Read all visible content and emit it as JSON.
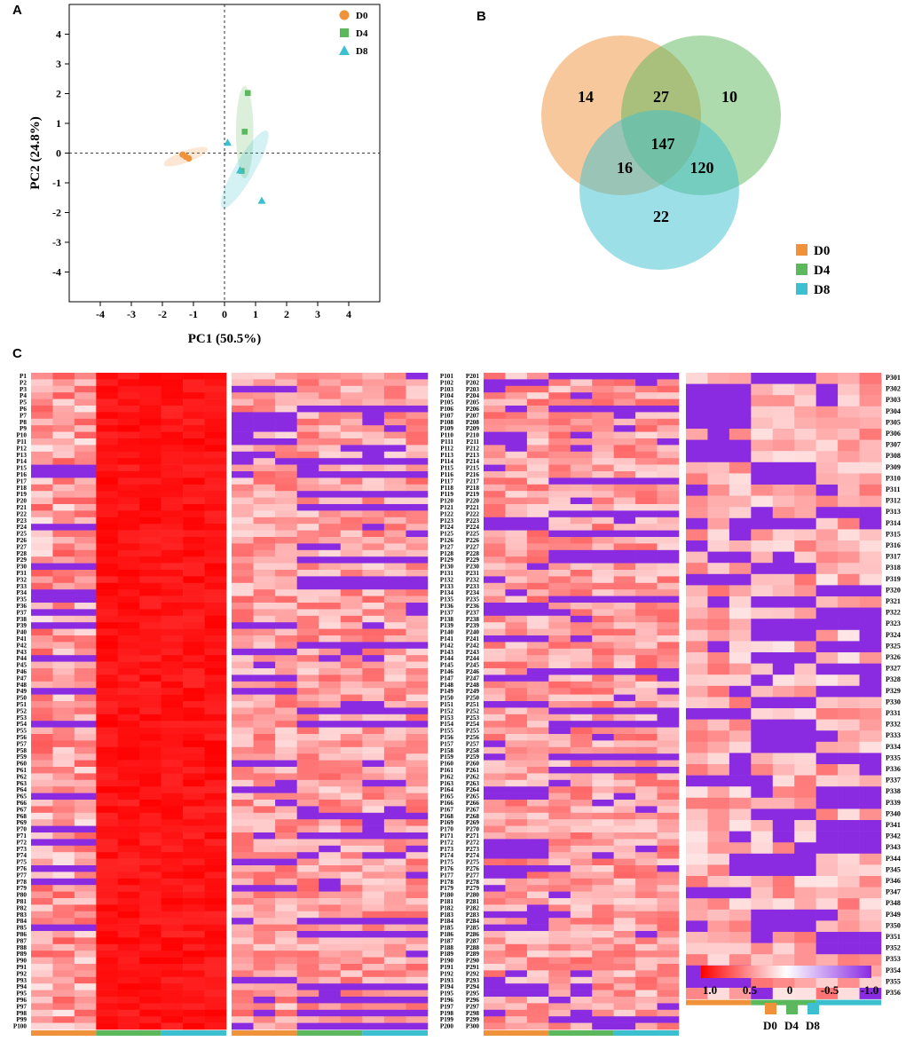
{
  "panels": {
    "a": "A",
    "b": "B",
    "c": "C"
  },
  "chart_data": [
    {
      "type": "scatter",
      "panel": "A",
      "xlabel": "PC1 (50.5%)",
      "ylabel": "PC2 (24.8%)",
      "xlim": [
        -5,
        5
      ],
      "ylim": [
        -5,
        5
      ],
      "xticks": [
        -4,
        -3,
        -2,
        -1,
        0,
        1,
        2,
        3,
        4
      ],
      "yticks": [
        -4,
        -3,
        -2,
        -1,
        0,
        1,
        2,
        3,
        4
      ],
      "legend_position": "top-right",
      "series": [
        {
          "name": "D0",
          "color": "#f0923a",
          "marker": "circle",
          "points": [
            [
              -1.35,
              -0.05
            ],
            [
              -1.25,
              -0.12
            ],
            [
              -1.15,
              -0.18
            ]
          ],
          "ellipse": {
            "cx": -1.25,
            "cy": -0.12,
            "rx": 0.75,
            "ry": 0.2,
            "angle": -20
          }
        },
        {
          "name": "D4",
          "color": "#5cb85c",
          "marker": "square",
          "points": [
            [
              0.75,
              2.02
            ],
            [
              0.65,
              0.72
            ],
            [
              0.55,
              -0.6
            ]
          ],
          "ellipse": {
            "cx": 0.65,
            "cy": 0.7,
            "rx": 0.28,
            "ry": 1.55,
            "angle": 0
          }
        },
        {
          "name": "D8",
          "color": "#3cbfcf",
          "marker": "triangle",
          "points": [
            [
              0.1,
              0.35
            ],
            [
              0.5,
              -0.58
            ],
            [
              1.2,
              -1.6
            ]
          ],
          "ellipse": {
            "cx": 0.65,
            "cy": -0.55,
            "rx": 0.32,
            "ry": 1.5,
            "angle": 30
          }
        }
      ]
    },
    {
      "type": "venn",
      "panel": "B",
      "sets": [
        {
          "name": "D0",
          "color": "#f0923a"
        },
        {
          "name": "D4",
          "color": "#5cb85c"
        },
        {
          "name": "D8",
          "color": "#3cbfcf"
        }
      ],
      "regions": {
        "D0_only": 14,
        "D4_only": 10,
        "D8_only": 22,
        "D0_D4": 27,
        "D0_D8": 16,
        "D4_D8": 120,
        "D0_D4_D8": 147
      },
      "legend": [
        "D0",
        "D4",
        "D8"
      ]
    },
    {
      "type": "heatmap",
      "panel": "C",
      "row_prefix": "P",
      "row_count": 356,
      "blocks": [
        [
          1,
          100
        ],
        [
          101,
          200
        ],
        [
          201,
          300
        ],
        [
          301,
          356
        ]
      ],
      "groups": [
        {
          "name": "D0",
          "color": "#f0923a"
        },
        {
          "name": "D4",
          "color": "#5cb85c"
        },
        {
          "name": "D8",
          "color": "#3cbfcf"
        }
      ],
      "columns_per_group": 3,
      "colorbar": {
        "ticks": [
          "1.0",
          "0.5",
          "0",
          "-0.5",
          "-1.0"
        ],
        "low_color": "#8a2be2",
        "mid_color": "#ffffff",
        "high_color": "#ff0000"
      },
      "legend": [
        "D0",
        "D4",
        "D8"
      ]
    }
  ]
}
